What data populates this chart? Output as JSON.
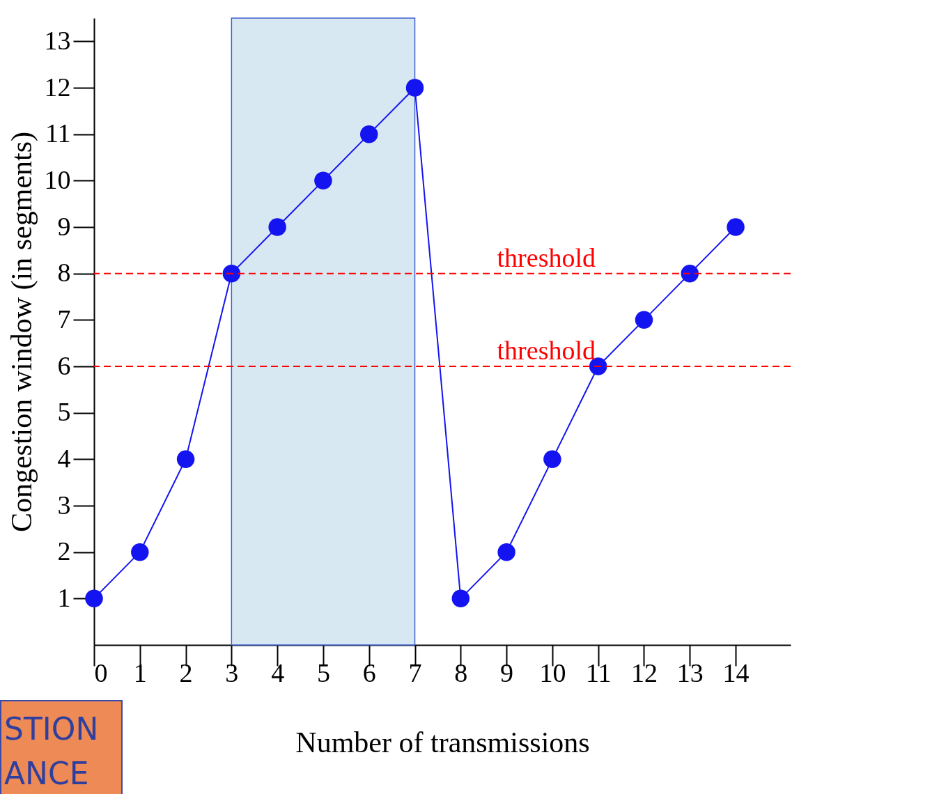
{
  "chart_data": {
    "type": "line",
    "xlabel": "Number of transmissions",
    "ylabel": "Congestion window (in segments)",
    "x": [
      0,
      1,
      2,
      3,
      4,
      5,
      6,
      7,
      8,
      9,
      10,
      11,
      12,
      13,
      14
    ],
    "series": [
      {
        "color": "#1414f0",
        "values": [
          1,
          2,
          4,
          8,
          9,
          10,
          11,
          12,
          1,
          2,
          4,
          6,
          7,
          8,
          9
        ]
      }
    ],
    "xlim": [
      0,
      15.2
    ],
    "xticks": [
      0,
      1,
      2,
      3,
      4,
      5,
      6,
      7,
      8,
      9,
      10,
      11,
      12,
      13,
      14
    ],
    "ylim": [
      0,
      13.5
    ],
    "yticks": [
      1,
      2,
      3,
      4,
      5,
      6,
      7,
      8,
      9,
      10,
      11,
      12,
      13
    ],
    "marker": "circle",
    "line_style": "solid",
    "grid": false,
    "ref_lines": [
      {
        "axis": "y",
        "value": 8,
        "label": "threshold",
        "color": "#ff0000",
        "line_style": "dashed"
      },
      {
        "axis": "y",
        "value": 6,
        "label": "threshold",
        "color": "#ff0000",
        "line_style": "dashed"
      }
    ],
    "bands": [
      {
        "axis": "x",
        "from": 3,
        "to": 7,
        "color": "#d8e8f2"
      }
    ],
    "annotations": [
      "STION\nANCE"
    ]
  }
}
